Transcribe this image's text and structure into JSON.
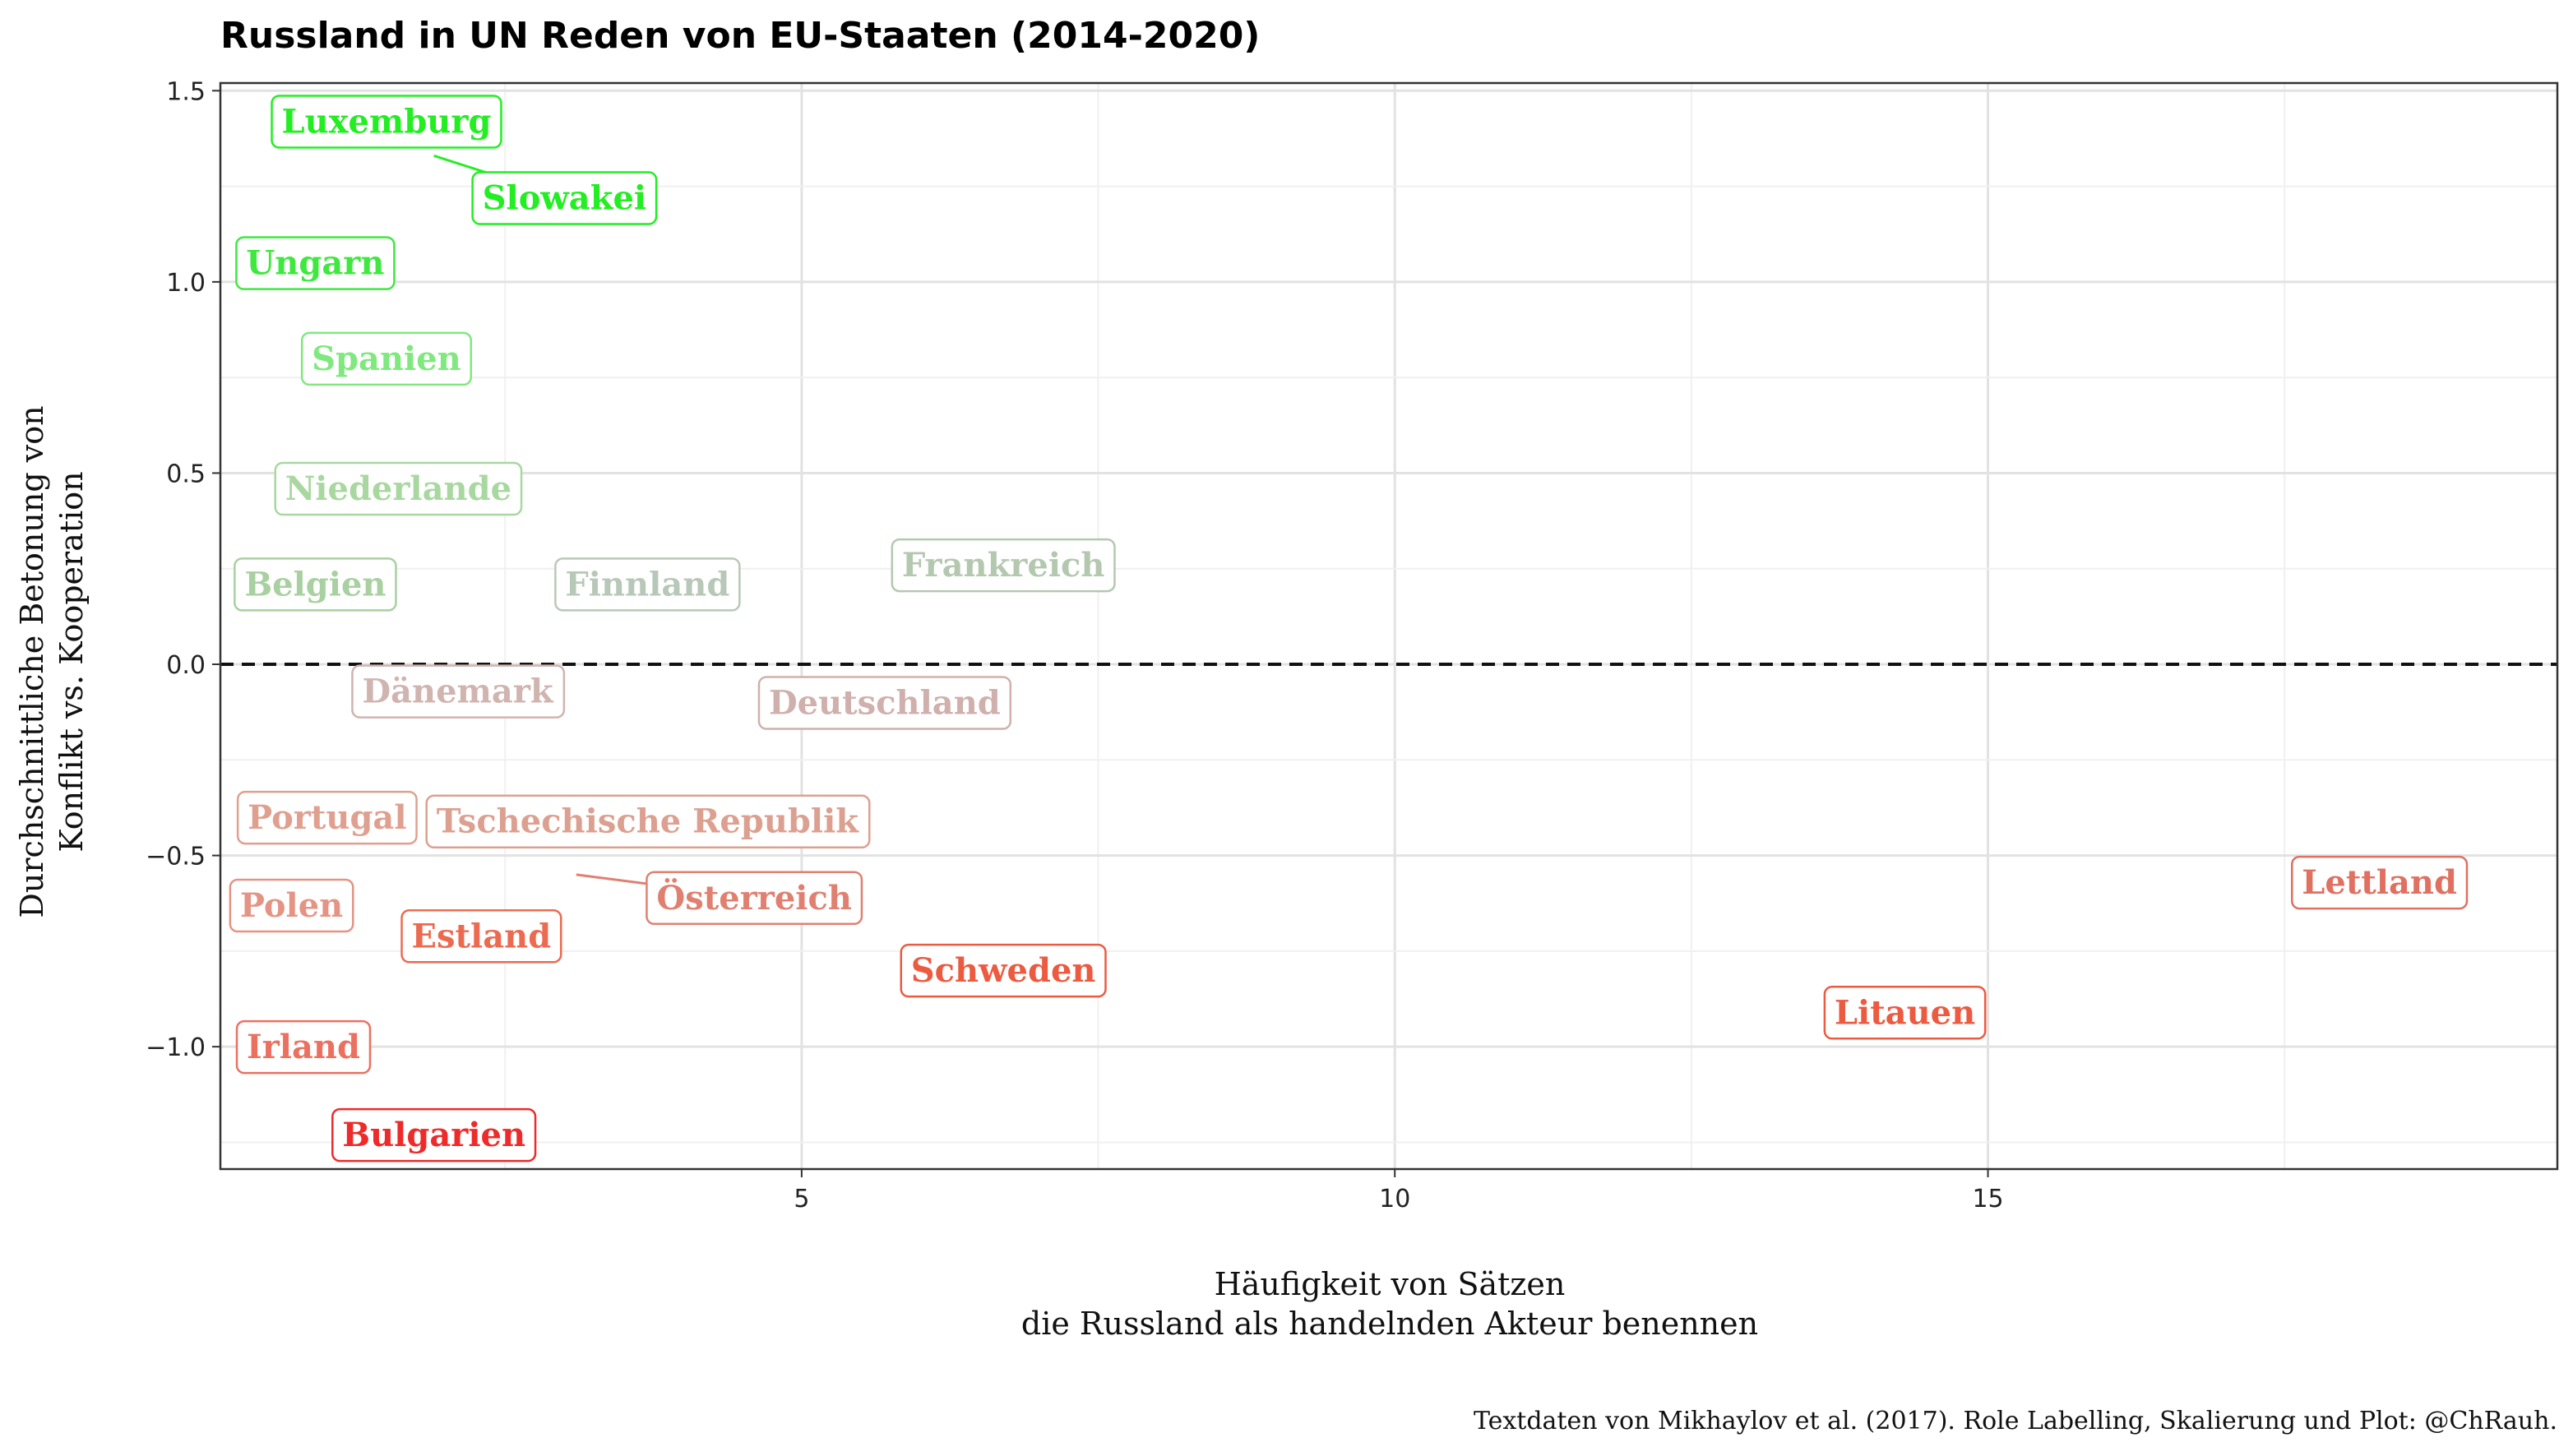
{
  "chart_data": {
    "type": "scatter",
    "title": "Russland in UN Reden von EU-Staaten (2014-2020)",
    "xlabel": [
      "Häufigkeit von Sätzen",
      "die Russland als handelnden Akteur benennen"
    ],
    "ylabel": [
      "Durchschnittliche Betonung von",
      "Konflikt vs. Kooperation"
    ],
    "caption": "Textdaten von Mikhaylov et al. (2017). Role Labelling, Skalierung und Plot: @ChRauh.",
    "xlim": [
      0.1,
      19.8
    ],
    "ylim": [
      -1.32,
      1.52
    ],
    "x_ticks": [
      5,
      10,
      15
    ],
    "x_tick_labels": [
      "5",
      "10",
      "15"
    ],
    "y_ticks": [
      -1.0,
      -0.5,
      0.0,
      0.5,
      1.0,
      1.5
    ],
    "y_tick_labels": [
      "−1.0",
      "−0.5",
      "0.0",
      "0.5",
      "1.0",
      "1.5"
    ],
    "reference_line": {
      "y": 0,
      "style": "dashed"
    },
    "grid": true,
    "points": [
      {
        "label": "Luxemburg",
        "x": 1.5,
        "y": 1.42,
        "color": "#22ee22"
      },
      {
        "label": "Slowakei",
        "x": 3.0,
        "y": 1.22,
        "color": "#22ee22",
        "line_to": [
          1.9,
          1.33
        ]
      },
      {
        "label": "Ungarn",
        "x": 0.9,
        "y": 1.05,
        "color": "#3fe83f"
      },
      {
        "label": "Spanien",
        "x": 1.5,
        "y": 0.8,
        "color": "#7fe87f"
      },
      {
        "label": "Niederlande",
        "x": 1.6,
        "y": 0.46,
        "color": "#a8d8a0"
      },
      {
        "label": "Belgien",
        "x": 0.9,
        "y": 0.21,
        "color": "#a8d0a0"
      },
      {
        "label": "Finnland",
        "x": 3.7,
        "y": 0.21,
        "color": "#b8c8b8"
      },
      {
        "label": "Frankreich",
        "x": 6.7,
        "y": 0.26,
        "color": "#b4c8b0"
      },
      {
        "label": "Dänemark",
        "x": 2.1,
        "y": -0.07,
        "color": "#d0b4b0"
      },
      {
        "label": "Deutschland",
        "x": 5.7,
        "y": -0.1,
        "color": "#d0b0ac"
      },
      {
        "label": "Portugal",
        "x": 1.0,
        "y": -0.4,
        "color": "#e0a090"
      },
      {
        "label": "Tschechische Republik",
        "x": 3.7,
        "y": -0.41,
        "color": "#dca090"
      },
      {
        "label": "Polen",
        "x": 0.7,
        "y": -0.63,
        "color": "#e49484"
      },
      {
        "label": "Österreich",
        "x": 4.6,
        "y": -0.61,
        "color": "#e08070",
        "line_to": [
          3.1,
          -0.55
        ]
      },
      {
        "label": "Estland",
        "x": 2.3,
        "y": -0.71,
        "color": "#ec6a50"
      },
      {
        "label": "Schweden",
        "x": 6.7,
        "y": -0.8,
        "color": "#ec5a40"
      },
      {
        "label": "Litauen",
        "x": 14.3,
        "y": -0.91,
        "color": "#ec5a40"
      },
      {
        "label": "Lettland",
        "x": 18.3,
        "y": -0.57,
        "color": "#e07060"
      },
      {
        "label": "Irland",
        "x": 0.8,
        "y": -1.0,
        "color": "#ec7060"
      },
      {
        "label": "Bulgarien",
        "x": 1.9,
        "y": -1.23,
        "color": "#ee2a2a"
      }
    ]
  }
}
